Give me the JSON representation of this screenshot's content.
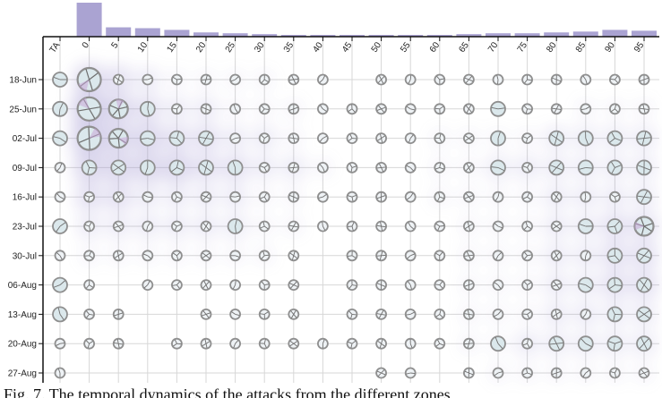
{
  "chart_data": {
    "type": "heatmap",
    "title": "",
    "xlabel": "",
    "ylabel": "",
    "x_categories": [
      "TA",
      "0",
      "5",
      "10",
      "15",
      "20",
      "25",
      "30",
      "35",
      "40",
      "45",
      "50",
      "55",
      "60",
      "65",
      "70",
      "75",
      "80",
      "85",
      "90",
      "95"
    ],
    "y_categories": [
      "18-Jun",
      "25-Jun",
      "02-Jul",
      "09-Jul",
      "16-Jul",
      "23-Jul",
      "30-Jul",
      "06-Aug",
      "13-Aug",
      "20-Aug",
      "27-Aug"
    ],
    "column_totals": [
      0,
      40,
      11,
      10,
      8,
      5,
      4,
      3,
      2,
      1,
      1,
      2,
      2,
      2,
      3,
      4,
      4,
      5,
      6,
      8,
      7
    ],
    "glyph_sizes": [
      [
        3,
        5,
        2,
        2,
        2,
        2,
        2,
        2,
        2,
        2,
        0,
        2,
        2,
        2,
        2,
        2,
        2,
        2,
        2,
        2,
        2
      ],
      [
        3,
        5,
        4,
        3,
        2,
        2,
        2,
        2,
        2,
        2,
        2,
        2,
        2,
        2,
        2,
        3,
        2,
        2,
        2,
        2,
        2
      ],
      [
        3,
        5,
        4,
        3,
        3,
        3,
        2,
        2,
        2,
        2,
        2,
        2,
        2,
        2,
        2,
        3,
        2,
        3,
        3,
        3,
        3
      ],
      [
        2,
        3,
        3,
        3,
        3,
        3,
        3,
        2,
        2,
        2,
        2,
        2,
        2,
        2,
        2,
        3,
        2,
        3,
        3,
        3,
        3
      ],
      [
        2,
        2,
        2,
        2,
        2,
        2,
        2,
        2,
        2,
        2,
        2,
        2,
        2,
        2,
        2,
        2,
        2,
        2,
        2,
        2,
        3
      ],
      [
        3,
        2,
        2,
        2,
        2,
        2,
        3,
        2,
        2,
        2,
        2,
        2,
        2,
        2,
        2,
        2,
        2,
        2,
        3,
        3,
        4
      ],
      [
        2,
        2,
        2,
        2,
        2,
        2,
        2,
        2,
        2,
        0,
        2,
        2,
        2,
        2,
        2,
        2,
        2,
        2,
        2,
        3,
        3
      ],
      [
        3,
        2,
        0,
        2,
        2,
        2,
        2,
        2,
        2,
        0,
        2,
        2,
        2,
        2,
        2,
        2,
        2,
        2,
        3,
        3,
        3
      ],
      [
        3,
        2,
        2,
        0,
        0,
        2,
        2,
        2,
        2,
        0,
        2,
        2,
        2,
        2,
        2,
        2,
        2,
        2,
        2,
        3,
        3
      ],
      [
        2,
        2,
        2,
        0,
        2,
        2,
        2,
        2,
        2,
        2,
        2,
        2,
        2,
        2,
        2,
        3,
        2,
        3,
        3,
        3,
        3
      ],
      [
        2,
        0,
        0,
        0,
        0,
        0,
        0,
        0,
        0,
        0,
        0,
        2,
        2,
        0,
        2,
        2,
        2,
        2,
        2,
        2,
        2
      ]
    ],
    "density": [
      [
        0,
        4,
        3,
        2,
        1,
        1,
        1,
        1,
        0,
        0,
        0,
        0,
        0,
        0,
        0,
        0,
        0,
        0,
        0,
        0,
        0
      ],
      [
        0,
        5,
        4,
        3,
        2,
        2,
        1,
        1,
        1,
        0,
        0,
        0,
        0,
        0,
        0,
        0,
        0,
        0,
        1,
        1,
        1
      ],
      [
        0,
        5,
        4,
        4,
        3,
        3,
        2,
        2,
        1,
        0,
        0,
        0,
        0,
        1,
        1,
        1,
        1,
        2,
        2,
        2,
        2
      ],
      [
        0,
        4,
        4,
        4,
        4,
        3,
        3,
        2,
        2,
        1,
        0,
        0,
        0,
        1,
        1,
        2,
        2,
        2,
        2,
        2,
        2
      ],
      [
        0,
        3,
        3,
        2,
        2,
        2,
        2,
        1,
        1,
        0,
        0,
        0,
        0,
        1,
        1,
        1,
        1,
        2,
        2,
        2,
        2
      ],
      [
        0,
        2,
        2,
        2,
        2,
        2,
        2,
        1,
        1,
        0,
        0,
        0,
        0,
        0,
        1,
        1,
        1,
        2,
        2,
        3,
        3
      ],
      [
        0,
        1,
        1,
        1,
        1,
        1,
        1,
        1,
        0,
        0,
        0,
        0,
        0,
        0,
        1,
        1,
        1,
        2,
        2,
        3,
        3
      ],
      [
        0,
        0,
        0,
        0,
        0,
        0,
        0,
        0,
        0,
        0,
        0,
        0,
        0,
        0,
        1,
        1,
        1,
        2,
        2,
        3,
        3
      ],
      [
        0,
        0,
        0,
        0,
        0,
        0,
        0,
        0,
        0,
        0,
        0,
        0,
        0,
        0,
        1,
        1,
        1,
        2,
        2,
        2,
        2
      ],
      [
        0,
        0,
        0,
        0,
        0,
        0,
        0,
        0,
        0,
        0,
        0,
        0,
        0,
        0,
        1,
        1,
        2,
        2,
        2,
        2,
        2
      ],
      [
        0,
        0,
        0,
        0,
        0,
        0,
        0,
        0,
        0,
        0,
        0,
        0,
        0,
        0,
        0,
        1,
        1,
        1,
        1,
        1,
        1
      ]
    ],
    "colors": {
      "bar": "#aaa3d2",
      "density": "#9c92cf",
      "glyph_ring": "#8f8f8f",
      "glyph_fill": "#eef2f5",
      "glyph_fill_large": "#dbe8ec",
      "glyph_line": "#6e6e6e",
      "glyph_accent": "#c9a7d9",
      "grid": "#d7d7d7",
      "axis": "#111111"
    },
    "grid": true,
    "legend": "none"
  },
  "caption": {
    "text": "Fig. 7.   The temporal dynamics of the attacks from the different zones"
  }
}
